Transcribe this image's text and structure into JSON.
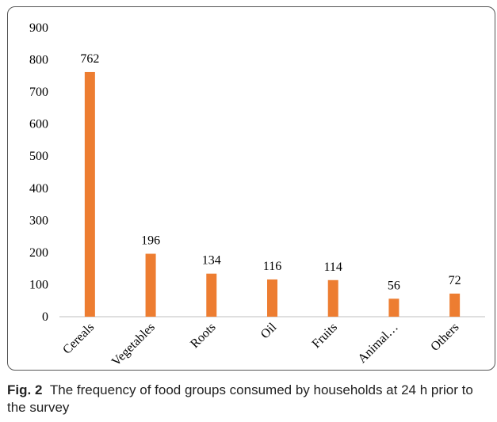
{
  "chart_data": {
    "type": "bar",
    "categories": [
      "Cereals",
      "Vegetables",
      "Roots",
      "Oil",
      "Fruits",
      "Animal…",
      "Others"
    ],
    "values": [
      762,
      196,
      134,
      116,
      114,
      56,
      72
    ],
    "data_labels": [
      "762",
      "196",
      "134",
      "116",
      "114",
      "56",
      "72"
    ],
    "ylim": [
      0,
      900
    ],
    "yticks": [
      "0",
      "100",
      "200",
      "300",
      "400",
      "500",
      "600",
      "700",
      "800",
      "900"
    ],
    "grid": false,
    "legend": "none",
    "bar_color": "#ED7D31"
  },
  "caption": {
    "prefix": "Fig. 2",
    "text": "The frequency of food groups consumed by households at 24 h prior to the survey"
  }
}
